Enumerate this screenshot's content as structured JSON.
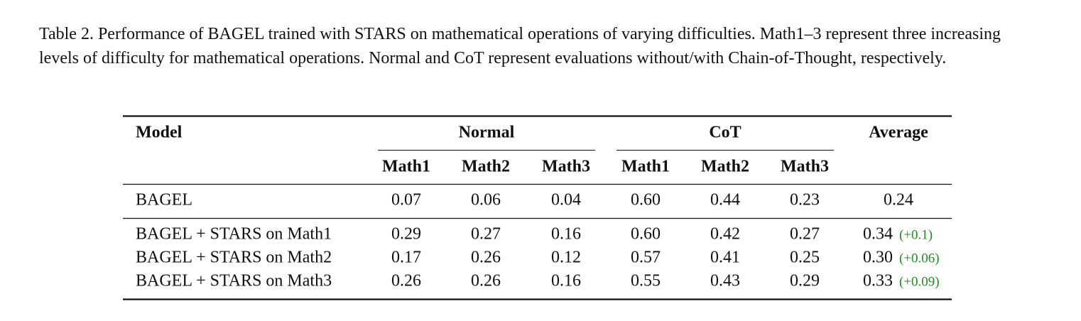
{
  "caption": "Table 2. Performance of BAGEL trained with STARS on mathematical operations of varying difficulties. Math1–3 represent three increasing levels of difficulty for mathematical operations. Normal and CoT represent evaluations without/with Chain-of-Thought, respectively.",
  "table": {
    "header": {
      "model": "Model",
      "groups": [
        "Normal",
        "CoT"
      ],
      "average": "Average",
      "subcolumns": [
        "Math1",
        "Math2",
        "Math3",
        "Math1",
        "Math2",
        "Math3"
      ]
    },
    "baseline": {
      "model": "BAGEL",
      "values": [
        "0.07",
        "0.06",
        "0.04",
        "0.60",
        "0.44",
        "0.23"
      ],
      "average": "0.24"
    },
    "rows": [
      {
        "model": "BAGEL + STARS on Math1",
        "values": [
          "0.29",
          "0.27",
          "0.16",
          "0.60",
          "0.42",
          "0.27"
        ],
        "average": "0.34",
        "delta": "(+0.1)"
      },
      {
        "model": "BAGEL + STARS on Math2",
        "values": [
          "0.17",
          "0.26",
          "0.12",
          "0.57",
          "0.41",
          "0.25"
        ],
        "average": "0.30",
        "delta": "(+0.06)"
      },
      {
        "model": "BAGEL + STARS on Math3",
        "values": [
          "0.26",
          "0.26",
          "0.16",
          "0.55",
          "0.43",
          "0.29"
        ],
        "average": "0.33",
        "delta": "(+0.09)"
      }
    ]
  }
}
